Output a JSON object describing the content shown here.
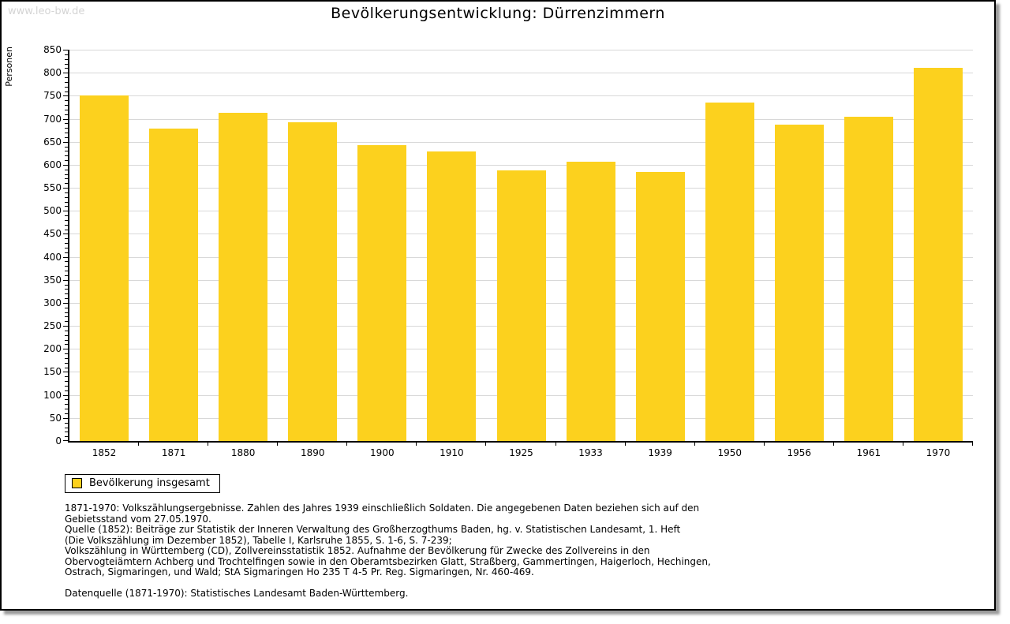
{
  "page": {
    "watermark": "www.leo-bw.de",
    "title": "Bevölkerungsentwicklung: Dürrenzimmern"
  },
  "chart_data": {
    "type": "bar",
    "title": "Bevölkerungsentwicklung: Dürrenzimmern",
    "xlabel": "",
    "ylabel": "Personen",
    "categories": [
      "1852",
      "1871",
      "1880",
      "1890",
      "1900",
      "1910",
      "1925",
      "1933",
      "1939",
      "1950",
      "1956",
      "1961",
      "1970"
    ],
    "values": [
      750,
      678,
      713,
      693,
      643,
      629,
      588,
      607,
      584,
      735,
      688,
      704,
      810
    ],
    "series_name": "Bevölkerung insgesamt",
    "ylim": [
      0,
      850
    ],
    "ytick_step": 50,
    "ytick_minor_step": 10,
    "grid": true,
    "bar_color": "#fcd11e",
    "grid_color": "#d8d8d8",
    "legend_position": "bottom-left"
  },
  "legend": {
    "label": "Bevölkerung insgesamt",
    "swatch_color": "#fcd11e"
  },
  "footer": {
    "lines": [
      "1871-1970: Volkszählungsergebnisse. Zahlen des Jahres 1939 einschließlich Soldaten. Die angegebenen Daten beziehen sich auf den",
      "Gebietsstand vom 27.05.1970.",
      "Quelle (1852): Beiträge zur Statistik der Inneren Verwaltung des Großherzogthums Baden, hg. v. Statistischen Landesamt, 1. Heft",
      "(Die Volkszählung im Dezember 1852), Tabelle I, Karlsruhe 1855, S. 1-6, S. 7-239;",
      "Volkszählung in Württemberg (CD), Zollvereinsstatistik 1852. Aufnahme der Bevölkerung für Zwecke des Zollvereins in den",
      "Obervogteiämtern Achberg und Trochtelfingen sowie in den Oberamtsbezirken Glatt, Straßberg, Gammertingen, Haigerloch, Hechingen,",
      "Ostrach, Sigmaringen, und Wald; StA Sigmaringen Ho 235 T 4-5 Pr. Reg. Sigmaringen, Nr. 460-469."
    ],
    "datasource": "Datenquelle (1871-1970): Statistisches Landesamt Baden-Württemberg."
  }
}
